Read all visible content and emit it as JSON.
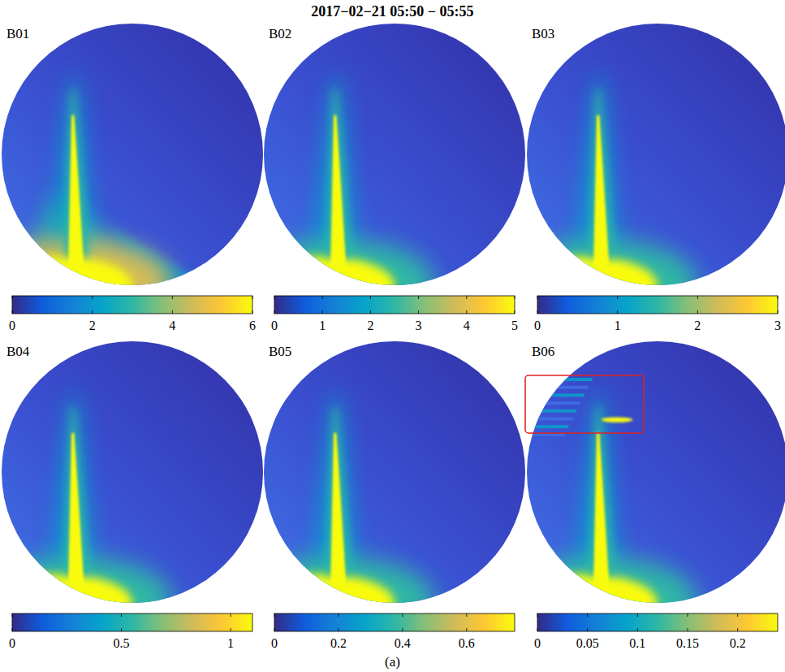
{
  "title": "2017−02−21 05:50 − 05:55",
  "caption": "(a)",
  "chart_data": [
    {
      "type": "heatmap",
      "title": "B01",
      "colorbar_range": [
        0,
        6
      ],
      "colorbar_ticks": [
        0,
        2,
        4,
        6
      ]
    },
    {
      "type": "heatmap",
      "title": "B02",
      "colorbar_range": [
        0,
        5
      ],
      "colorbar_ticks": [
        0,
        1,
        2,
        3,
        4,
        5
      ]
    },
    {
      "type": "heatmap",
      "title": "B03",
      "colorbar_range": [
        0,
        3
      ],
      "colorbar_ticks": [
        0,
        1,
        2,
        3
      ]
    },
    {
      "type": "heatmap",
      "title": "B04",
      "colorbar_range": [
        0,
        1.1
      ],
      "colorbar_ticks": [
        0,
        0.5,
        1
      ]
    },
    {
      "type": "heatmap",
      "title": "B05",
      "colorbar_range": [
        0,
        0.75
      ],
      "colorbar_ticks": [
        0,
        0.2,
        0.4,
        0.6
      ]
    },
    {
      "type": "heatmap",
      "title": "B06",
      "colorbar_range": [
        0,
        0.24
      ],
      "colorbar_ticks": [
        0,
        0.05,
        0.1,
        0.15,
        0.2
      ]
    }
  ]
}
